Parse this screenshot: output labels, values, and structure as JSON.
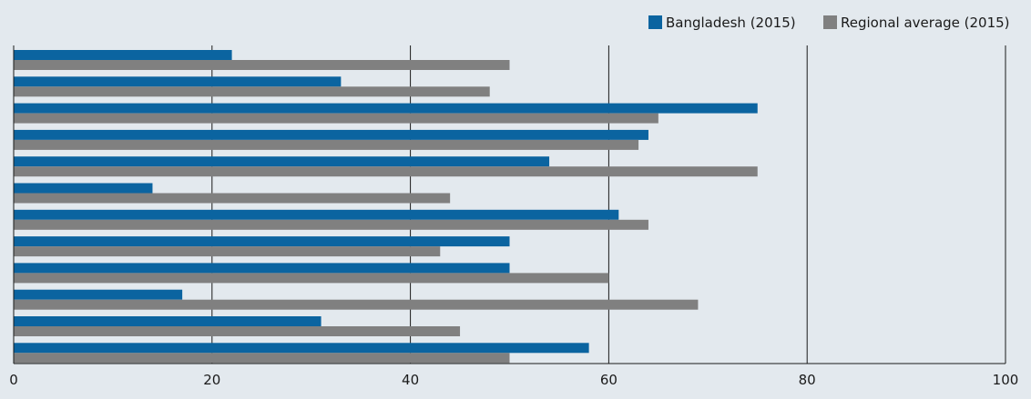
{
  "chart_data": {
    "type": "bar",
    "orientation": "horizontal",
    "categories": [
      "",
      "",
      "",
      "",
      "",
      "",
      "",
      "",
      "",
      "",
      "",
      ""
    ],
    "series": [
      {
        "name": "Bangladesh (2015)",
        "color": "#0b64a0",
        "values": [
          22,
          33,
          75,
          64,
          54,
          14,
          61,
          50,
          50,
          17,
          31,
          58
        ]
      },
      {
        "name": "Regional average (2015)",
        "color": "#808080",
        "values": [
          50,
          48,
          65,
          63,
          75,
          44,
          64,
          43,
          60,
          69,
          45,
          50
        ]
      }
    ],
    "xlim": [
      0,
      100
    ],
    "xticks": [
      0,
      20,
      40,
      60,
      80,
      100
    ],
    "xtick_labels": [
      "0",
      "20",
      "40",
      "60",
      "80",
      "100"
    ],
    "grid": true,
    "legend_position": "top-right",
    "background": "#e3e9ee"
  }
}
